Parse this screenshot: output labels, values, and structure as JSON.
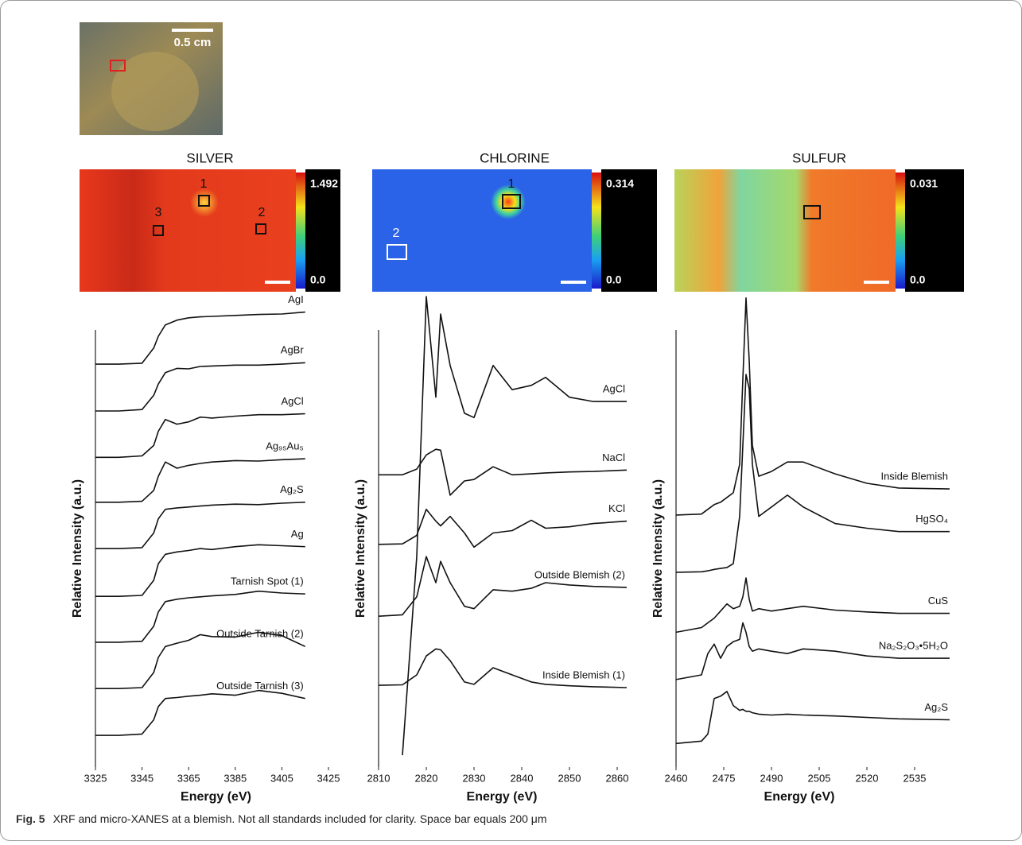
{
  "photo": {
    "scale_label": "0.5 cm"
  },
  "maps": [
    {
      "title": "SILVER",
      "max_label": "1.492",
      "min_label": "0.0",
      "regions": [
        "1",
        "3",
        "2"
      ]
    },
    {
      "title": "CHLORINE",
      "max_label": "0.314",
      "min_label": "0.0",
      "regions": [
        "1",
        "2"
      ]
    },
    {
      "title": "SULFUR",
      "max_label": "0.031",
      "min_label": "0.0",
      "regions": []
    }
  ],
  "chart_data": [
    {
      "type": "line",
      "xlabel": "Energy (eV)",
      "ylabel": "Relative Intensity (a.u.)",
      "x": [
        3325,
        3335,
        3345,
        3350,
        3352,
        3355,
        3360,
        3365,
        3370,
        3375,
        3385,
        3395,
        3405,
        3415
      ],
      "xlim": [
        3325,
        3425
      ],
      "xticks": [
        3325,
        3345,
        3365,
        3385,
        3405,
        3425
      ],
      "ylim": [
        0,
        10
      ],
      "series": [
        {
          "name": "AgI",
          "color": "#111111",
          "values": [
            8.52,
            8.52,
            8.54,
            8.86,
            9.11,
            9.35,
            9.45,
            9.5,
            9.52,
            9.53,
            9.55,
            9.57,
            9.58,
            9.62
          ]
        },
        {
          "name": "AgBr",
          "color": "#111111",
          "values": [
            7.53,
            7.53,
            7.56,
            7.86,
            8.1,
            8.34,
            8.43,
            8.42,
            8.47,
            8.48,
            8.5,
            8.5,
            8.52,
            8.55
          ]
        },
        {
          "name": "AgCl",
          "color": "#111111",
          "values": [
            6.55,
            6.55,
            6.58,
            6.8,
            7.1,
            7.35,
            7.25,
            7.3,
            7.4,
            7.38,
            7.42,
            7.45,
            7.45,
            7.47
          ]
        },
        {
          "name": "Ag₉₅Au₅",
          "color": "#111111",
          "values": [
            5.6,
            5.6,
            5.62,
            5.85,
            6.15,
            6.45,
            6.32,
            6.38,
            6.42,
            6.45,
            6.48,
            6.47,
            6.5,
            6.52
          ]
        },
        {
          "name": "Ag₂S",
          "color": "#111111",
          "values": [
            4.62,
            4.62,
            4.64,
            4.95,
            5.25,
            5.45,
            5.48,
            5.5,
            5.52,
            5.54,
            5.56,
            5.55,
            5.58,
            5.6
          ]
        },
        {
          "name": "Ag",
          "color": "#111111",
          "values": [
            3.61,
            3.61,
            3.63,
            3.95,
            4.3,
            4.5,
            4.55,
            4.58,
            4.62,
            4.6,
            4.66,
            4.7,
            4.68,
            4.66
          ]
        },
        {
          "name": "Tarnish Spot (1)",
          "color": "#111111",
          "values": [
            2.64,
            2.64,
            2.66,
            2.98,
            3.28,
            3.5,
            3.55,
            3.58,
            3.6,
            3.62,
            3.65,
            3.72,
            3.68,
            3.66
          ]
        },
        {
          "name": "Outside Tarnish (2)",
          "color": "#111111",
          "values": [
            1.66,
            1.66,
            1.68,
            2.0,
            2.32,
            2.55,
            2.62,
            2.68,
            2.8,
            2.76,
            2.75,
            2.85,
            2.78,
            2.55
          ]
        },
        {
          "name": "Outside Tarnish (3)",
          "color": "#111111",
          "values": [
            0.67,
            0.67,
            0.7,
            1.0,
            1.28,
            1.45,
            1.47,
            1.5,
            1.52,
            1.55,
            1.52,
            1.62,
            1.56,
            1.45
          ]
        }
      ]
    },
    {
      "type": "line",
      "xlabel": "Energy (eV)",
      "ylabel": "Relative Intensity (a.u.)",
      "x": [
        2810,
        2815,
        2818,
        2820,
        2822,
        2823,
        2825,
        2828,
        2830,
        2834,
        2838,
        2842,
        2845,
        2850,
        2855,
        2862
      ],
      "xlim": [
        2810,
        2862
      ],
      "xticks": [
        2810,
        2820,
        2830,
        2840,
        2850,
        2860
      ],
      "ylim": [
        0,
        10
      ],
      "series": [
        {
          "name": "AgCl",
          "color": "#111111",
          "values": [
            null,
            0.25,
            4.45,
            9.95,
            7.82,
            9.58,
            8.49,
            7.48,
            7.39,
            8.49,
            7.98,
            8.07,
            8.24,
            7.82,
            7.73,
            7.73
          ]
        },
        {
          "name": "NaCl",
          "color": "#111111",
          "values": [
            6.18,
            6.18,
            6.3,
            6.6,
            6.72,
            6.7,
            5.75,
            6.05,
            6.08,
            6.35,
            6.18,
            6.2,
            6.22,
            6.24,
            6.25,
            6.28
          ]
        },
        {
          "name": "KCl",
          "color": "#111111",
          "values": [
            4.71,
            4.72,
            4.9,
            5.45,
            5.2,
            5.1,
            5.3,
            4.95,
            4.65,
            4.95,
            5.0,
            5.22,
            5.05,
            5.08,
            5.15,
            5.2
          ]
        },
        {
          "name": "Outside Blemish (2)",
          "color": "#111111",
          "values": [
            3.19,
            3.22,
            3.6,
            4.45,
            3.9,
            4.35,
            3.9,
            3.4,
            3.35,
            3.75,
            3.72,
            3.78,
            3.9,
            3.85,
            3.82,
            3.8
          ]
        },
        {
          "name": "Inside Blemish (1)",
          "color": "#111111",
          "values": [
            1.73,
            1.74,
            1.95,
            2.35,
            2.5,
            2.48,
            2.25,
            1.8,
            1.75,
            2.1,
            1.95,
            1.8,
            1.75,
            1.72,
            1.7,
            1.68
          ]
        }
      ]
    },
    {
      "type": "line",
      "xlabel": "Energy (eV)",
      "ylabel": "Relative Intensity (a.u.)",
      "x": [
        2460,
        2468,
        2470,
        2472,
        2474,
        2476,
        2478,
        2480,
        2481,
        2482,
        2483,
        2484,
        2486,
        2490,
        2495,
        2500,
        2510,
        2520,
        2530,
        2546
      ],
      "xlim": [
        2460,
        2547
      ],
      "xticks": [
        2460,
        2475,
        2490,
        2505,
        2520,
        2535
      ],
      "ylim": [
        0,
        10
      ],
      "series": [
        {
          "name": "Inside Blemish",
          "color": "#111111",
          "values": [
            5.33,
            5.35,
            5.45,
            5.55,
            5.6,
            5.7,
            5.8,
            6.4,
            8.2,
            9.92,
            8.6,
            6.8,
            6.15,
            6.25,
            6.45,
            6.45,
            6.2,
            6.0,
            5.9,
            5.88
          ]
        },
        {
          "name": "HgSO₄",
          "color": "#111111",
          "values": [
            4.12,
            4.13,
            4.15,
            4.18,
            4.2,
            4.22,
            4.3,
            5.3,
            6.8,
            8.3,
            8.0,
            6.4,
            5.3,
            5.5,
            5.75,
            5.5,
            5.15,
            5.05,
            4.98,
            4.98
          ]
        },
        {
          "name": "CuS",
          "color": "#111111",
          "values": [
            2.85,
            2.95,
            3.05,
            3.15,
            3.3,
            3.45,
            3.35,
            3.4,
            3.6,
            4.0,
            3.55,
            3.3,
            3.35,
            3.3,
            3.35,
            3.4,
            3.32,
            3.28,
            3.25,
            3.25
          ]
        },
        {
          "name": "Na₂S₂O₃•5H₂O",
          "color": "#111111",
          "values": [
            1.85,
            1.95,
            2.4,
            2.6,
            2.3,
            2.55,
            2.65,
            2.7,
            3.05,
            2.85,
            2.55,
            2.45,
            2.5,
            2.45,
            2.4,
            2.5,
            2.45,
            2.35,
            2.3,
            2.3
          ]
        },
        {
          "name": "Ag₂S",
          "color": "#111111",
          "values": [
            0.5,
            0.55,
            0.7,
            1.45,
            1.5,
            1.6,
            1.3,
            1.2,
            1.22,
            1.18,
            1.18,
            1.15,
            1.12,
            1.1,
            1.12,
            1.1,
            1.08,
            1.05,
            1.02,
            1.0
          ]
        }
      ]
    }
  ],
  "caption": {
    "label": "Fig. 5",
    "text": "XRF and micro-XANES at a blemish. Not all standards included for clarity. Space bar equals 200 μm"
  }
}
